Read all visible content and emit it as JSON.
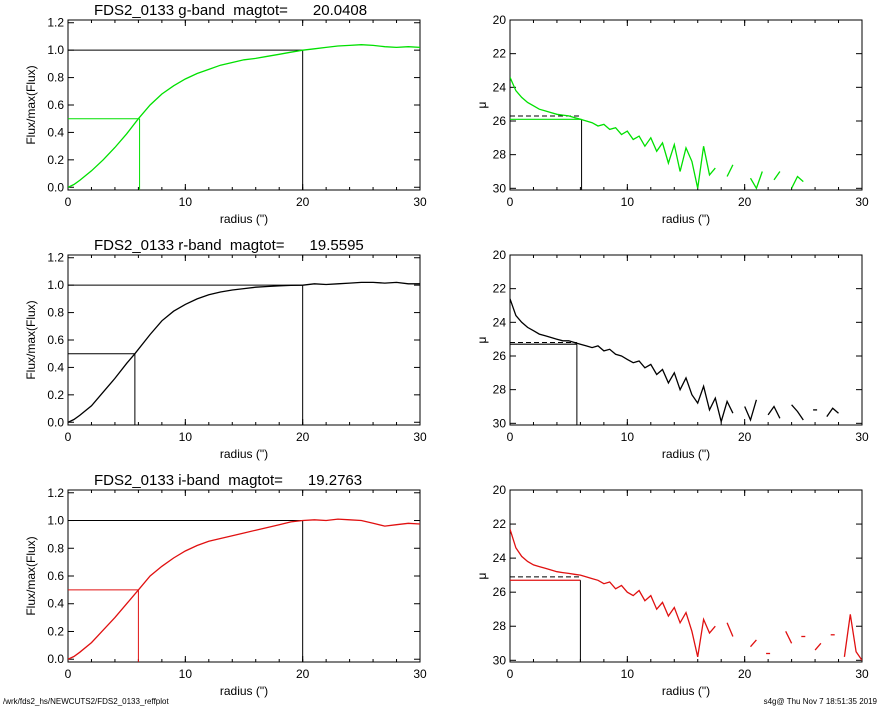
{
  "footer": {
    "left": "/wrk/fds2_hs/NEWCUTS2/FDS2_0133_reffplot",
    "right": "s4g@  Thu Nov  7 18:51:35 2019"
  },
  "colors": {
    "g": "#00e000",
    "r": "#000000",
    "i": "#e01010",
    "axis": "#000000"
  },
  "chart_data": [
    {
      "type": "line",
      "panel": "growth-curve",
      "band": "g",
      "title": "FDS2_0133 g-band  magtot=      20.0408",
      "xlabel": "radius (\")",
      "ylabel": "Flux/max(Flux)",
      "xlim": [
        0,
        30
      ],
      "ylim": [
        -0.02,
        1.22
      ],
      "xticks": [
        "0",
        "10",
        "20",
        "30"
      ],
      "yticks": [
        "0.0",
        "0.2",
        "0.4",
        "0.6",
        "0.8",
        "1.0",
        "1.2"
      ],
      "ytick_values": [
        0,
        0.2,
        0.4,
        0.6,
        0.8,
        1.0,
        1.2
      ],
      "x": [
        0,
        0.5,
        1,
        2,
        3,
        4,
        5,
        6,
        7,
        8,
        9,
        10,
        11,
        12,
        13,
        14,
        15,
        16,
        17,
        18,
        19,
        20,
        21,
        22,
        23,
        24,
        25,
        26,
        27,
        28,
        29,
        30
      ],
      "y": [
        0,
        0.02,
        0.05,
        0.12,
        0.2,
        0.29,
        0.39,
        0.5,
        0.6,
        0.68,
        0.74,
        0.79,
        0.83,
        0.86,
        0.89,
        0.91,
        0.93,
        0.94,
        0.955,
        0.97,
        0.985,
        1.0,
        1.01,
        1.02,
        1.03,
        1.035,
        1.04,
        1.035,
        1.025,
        1.02,
        1.025,
        1.02
      ],
      "reference_lines": {
        "r_total": 20,
        "r_eff": 6.1,
        "half_level": 0.5,
        "full_level": 1.0
      }
    },
    {
      "type": "line",
      "panel": "surface-brightness",
      "band": "g",
      "xlabel": "radius (\")",
      "ylabel": "μ",
      "xlim": [
        0,
        30
      ],
      "ylim": [
        30.1,
        20
      ],
      "xticks": [
        "0",
        "10",
        "20",
        "30"
      ],
      "yticks": [
        "20",
        "22",
        "24",
        "26",
        "28",
        "30"
      ],
      "ytick_values": [
        20,
        22,
        24,
        26,
        28,
        30
      ],
      "x": [
        0,
        0.5,
        1,
        1.5,
        2,
        2.5,
        3,
        3.5,
        4,
        4.5,
        5,
        5.5,
        6,
        6.5,
        7,
        7.5,
        8,
        8.5,
        9,
        9.5,
        10,
        10.5,
        11,
        11.5,
        12,
        12.5,
        13,
        13.5,
        14,
        14.5,
        15,
        15.5,
        16,
        16.5,
        17,
        17.5,
        18,
        18.5,
        19,
        19.5,
        20,
        20.5,
        21,
        21.5,
        22,
        22.5,
        23,
        23.5,
        24,
        24.5,
        25
      ],
      "y": [
        23.4,
        24.2,
        24.6,
        24.9,
        25.1,
        25.3,
        25.4,
        25.5,
        25.6,
        25.65,
        25.7,
        25.8,
        25.9,
        26.0,
        26.1,
        26.3,
        26.2,
        26.5,
        26.4,
        26.8,
        26.6,
        27.1,
        26.9,
        27.5,
        27.0,
        27.8,
        27.3,
        28.5,
        27.4,
        29.0,
        27.6,
        28.4,
        30.0,
        27.5,
        29.2,
        28.8,
        null,
        29.3,
        28.6,
        null,
        null,
        29.4,
        30.0,
        29.0,
        null,
        29.5,
        29.0,
        null,
        30.0,
        29.3,
        29.6
      ],
      "reference_lines": {
        "r_eff": 6.1,
        "mu_eff": 25.9,
        "mean_mu_eff": 25.7
      }
    },
    {
      "type": "line",
      "panel": "growth-curve",
      "band": "r",
      "title": "FDS2_0133 r-band  magtot=      19.5595",
      "xlabel": "radius (\")",
      "ylabel": "Flux/max(Flux)",
      "xlim": [
        0,
        30
      ],
      "ylim": [
        -0.02,
        1.22
      ],
      "xticks": [
        "0",
        "10",
        "20",
        "30"
      ],
      "yticks": [
        "0.0",
        "0.2",
        "0.4",
        "0.6",
        "0.8",
        "1.0",
        "1.2"
      ],
      "ytick_values": [
        0,
        0.2,
        0.4,
        0.6,
        0.8,
        1.0,
        1.2
      ],
      "x": [
        0,
        0.5,
        1,
        2,
        3,
        4,
        5,
        5.7,
        7,
        8,
        9,
        10,
        11,
        12,
        13,
        14,
        15,
        16,
        17,
        18,
        19,
        20,
        21,
        22,
        23,
        24,
        25,
        26,
        27,
        28,
        29,
        30
      ],
      "y": [
        0,
        0.02,
        0.05,
        0.12,
        0.22,
        0.32,
        0.43,
        0.5,
        0.64,
        0.74,
        0.81,
        0.86,
        0.9,
        0.93,
        0.95,
        0.965,
        0.975,
        0.985,
        0.99,
        0.995,
        0.998,
        1.0,
        1.01,
        1.005,
        1.01,
        1.015,
        1.02,
        1.02,
        1.015,
        1.02,
        1.01,
        1.01
      ],
      "reference_lines": {
        "r_total": 20,
        "r_eff": 5.7,
        "half_level": 0.5,
        "full_level": 1.0
      }
    },
    {
      "type": "line",
      "panel": "surface-brightness",
      "band": "r",
      "xlabel": "radius (\")",
      "ylabel": "μ",
      "xlim": [
        0,
        30
      ],
      "ylim": [
        30.1,
        20
      ],
      "xticks": [
        "0",
        "10",
        "20",
        "30"
      ],
      "yticks": [
        "20",
        "22",
        "24",
        "26",
        "28",
        "30"
      ],
      "ytick_values": [
        20,
        22,
        24,
        26,
        28,
        30
      ],
      "x": [
        0,
        0.5,
        1,
        1.5,
        2,
        2.5,
        3,
        3.5,
        4,
        4.5,
        5,
        5.5,
        6,
        6.5,
        7,
        7.5,
        8,
        8.5,
        9,
        9.5,
        10,
        10.5,
        11,
        11.5,
        12,
        12.5,
        13,
        13.5,
        14,
        14.5,
        15,
        15.5,
        16,
        16.5,
        17,
        17.5,
        18,
        18.5,
        19,
        19.5,
        20,
        20.5,
        21,
        21.5,
        22,
        22.5,
        23,
        23.5,
        24,
        24.5,
        25,
        25.5,
        26,
        26.5,
        27,
        27.5,
        28
      ],
      "y": [
        22.6,
        23.6,
        24.0,
        24.3,
        24.5,
        24.7,
        24.8,
        24.9,
        25.0,
        25.1,
        25.1,
        25.2,
        25.3,
        25.4,
        25.5,
        25.4,
        25.7,
        25.6,
        25.9,
        26.0,
        26.2,
        26.4,
        26.3,
        26.7,
        26.5,
        27.1,
        26.8,
        27.6,
        27.0,
        28.0,
        27.3,
        28.3,
        28.8,
        27.8,
        29.2,
        28.5,
        29.9,
        28.7,
        29.4,
        null,
        29.0,
        29.8,
        28.6,
        null,
        29.5,
        29.0,
        29.7,
        null,
        28.9,
        29.3,
        29.8,
        null,
        29.2,
        null,
        29.6,
        29.1,
        29.4
      ],
      "reference_lines": {
        "r_eff": 5.7,
        "mu_eff": 25.3,
        "mean_mu_eff": 25.2
      }
    },
    {
      "type": "line",
      "panel": "growth-curve",
      "band": "i",
      "title": "FDS2_0133 i-band  magtot=      19.2763",
      "xlabel": "radius (\")",
      "ylabel": "Flux/max(Flux)",
      "xlim": [
        0,
        30
      ],
      "ylim": [
        -0.02,
        1.22
      ],
      "xticks": [
        "0",
        "10",
        "20",
        "30"
      ],
      "yticks": [
        "0.0",
        "0.2",
        "0.4",
        "0.6",
        "0.8",
        "1.0",
        "1.2"
      ],
      "ytick_values": [
        0,
        0.2,
        0.4,
        0.6,
        0.8,
        1.0,
        1.2
      ],
      "x": [
        0,
        0.5,
        1,
        2,
        3,
        4,
        5,
        6,
        7,
        8,
        9,
        10,
        11,
        12,
        13,
        14,
        15,
        16,
        17,
        18,
        19,
        20,
        21,
        22,
        23,
        24,
        25,
        26,
        27,
        28,
        29,
        30
      ],
      "y": [
        0,
        0.02,
        0.05,
        0.12,
        0.21,
        0.3,
        0.4,
        0.5,
        0.6,
        0.67,
        0.73,
        0.78,
        0.82,
        0.85,
        0.87,
        0.89,
        0.91,
        0.93,
        0.95,
        0.97,
        0.99,
        1.0,
        1.005,
        1.0,
        1.01,
        1.005,
        1.0,
        0.98,
        0.96,
        0.97,
        0.98,
        0.975
      ],
      "reference_lines": {
        "r_total": 20,
        "r_eff": 6.0,
        "half_level": 0.5,
        "full_level": 1.0
      }
    },
    {
      "type": "line",
      "panel": "surface-brightness",
      "band": "i",
      "xlabel": "radius (\")",
      "ylabel": "μ",
      "xlim": [
        0,
        30
      ],
      "ylim": [
        30.1,
        20
      ],
      "xticks": [
        "0",
        "10",
        "20",
        "30"
      ],
      "yticks": [
        "20",
        "22",
        "24",
        "26",
        "28",
        "30"
      ],
      "ytick_values": [
        20,
        22,
        24,
        26,
        28,
        30
      ],
      "x": [
        0,
        0.5,
        1,
        1.5,
        2,
        2.5,
        3,
        3.5,
        4,
        4.5,
        5,
        5.5,
        6,
        6.5,
        7,
        7.5,
        8,
        8.5,
        9,
        9.5,
        10,
        10.5,
        11,
        11.5,
        12,
        12.5,
        13,
        13.5,
        14,
        14.5,
        15,
        15.5,
        16,
        16.5,
        17,
        17.5,
        18,
        18.5,
        19,
        19.5,
        20,
        20.5,
        21,
        21.5,
        22,
        22.5,
        23,
        23.5,
        24,
        24.5,
        25,
        25.5,
        26,
        26.5,
        27,
        27.5,
        28,
        28.5,
        29,
        29.5,
        30
      ],
      "y": [
        22.3,
        23.4,
        23.9,
        24.2,
        24.4,
        24.5,
        24.6,
        24.7,
        24.8,
        24.85,
        24.9,
        24.95,
        25.0,
        25.1,
        25.2,
        25.3,
        25.5,
        25.4,
        25.8,
        25.6,
        26.0,
        26.2,
        25.9,
        26.5,
        26.2,
        27.0,
        26.6,
        27.4,
        26.9,
        27.8,
        27.2,
        28.3,
        29.8,
        27.6,
        28.4,
        28.0,
        null,
        27.8,
        28.6,
        null,
        null,
        29.2,
        28.8,
        null,
        29.6,
        null,
        null,
        28.3,
        29.0,
        null,
        28.6,
        null,
        29.4,
        29.0,
        null,
        28.5,
        null,
        29.8,
        27.3,
        29.5,
        30.0
      ],
      "reference_lines": {
        "r_eff": 6.0,
        "mu_eff": 25.3,
        "mean_mu_eff": 25.1
      }
    }
  ]
}
